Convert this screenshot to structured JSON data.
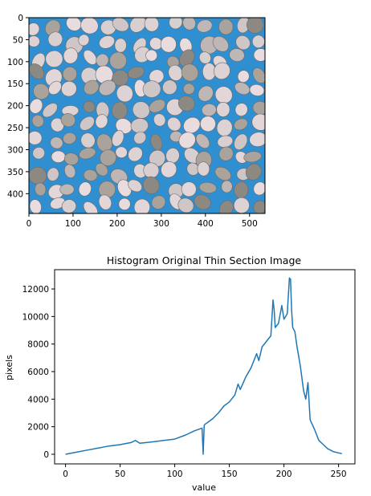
{
  "figures": [
    {
      "kind": "image",
      "x_ticks": [
        "0",
        "100",
        "200",
        "300",
        "400",
        "500"
      ],
      "y_ticks": [
        "0",
        "50",
        "100",
        "150",
        "200",
        "250",
        "300",
        "350",
        "400"
      ],
      "xlim": [
        0,
        535
      ],
      "ylim": [
        445,
        0
      ]
    }
  ],
  "chart_data": {
    "type": "line",
    "title": "Histogram Original Thin Section Image",
    "xlabel": "value",
    "ylabel": "pixels",
    "xlim": [
      -10,
      265
    ],
    "ylim": [
      -700,
      13400
    ],
    "x_ticks": [
      "0",
      "50",
      "100",
      "150",
      "200",
      "250"
    ],
    "y_ticks": [
      "0",
      "2000",
      "4000",
      "6000",
      "8000",
      "10000",
      "12000"
    ],
    "series": [
      {
        "color": "#1f77b4",
        "x": [
          0,
          10,
          20,
          30,
          40,
          50,
          60,
          64,
          68,
          80,
          90,
          100,
          110,
          118,
          125,
          126,
          127,
          128,
          130,
          135,
          140,
          145,
          150,
          155,
          158,
          160,
          165,
          170,
          175,
          177,
          180,
          185,
          188,
          190,
          191,
          192,
          195,
          198,
          200,
          203,
          205,
          206,
          207,
          208,
          210,
          212,
          215,
          218,
          220,
          222,
          224,
          228,
          232,
          236,
          240,
          245,
          250,
          253
        ],
        "y": [
          0,
          150,
          300,
          450,
          600,
          700,
          850,
          1000,
          800,
          900,
          1000,
          1100,
          1400,
          1700,
          1900,
          0,
          2100,
          2200,
          2300,
          2600,
          3000,
          3500,
          3800,
          4300,
          5100,
          4700,
          5600,
          6300,
          7300,
          6800,
          7800,
          8300,
          8600,
          11200,
          10500,
          9200,
          9500,
          10800,
          9800,
          10200,
          12800,
          12700,
          10500,
          9200,
          8900,
          7800,
          6400,
          4600,
          4000,
          5200,
          2500,
          1800,
          1000,
          700,
          400,
          200,
          100,
          50
        ]
      }
    ]
  }
}
